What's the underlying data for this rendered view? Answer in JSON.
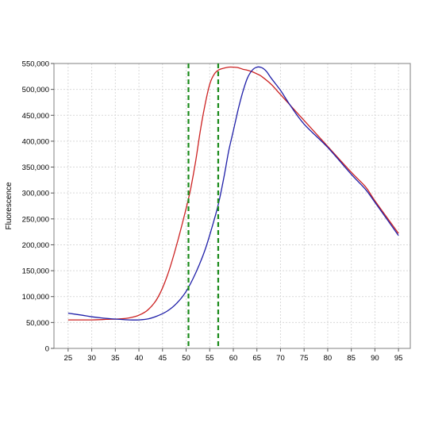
{
  "chart_data": {
    "type": "line",
    "title": "",
    "xlabel": "",
    "ylabel": "Fluorescence",
    "xlim": [
      22,
      97.5
    ],
    "ylim": [
      0,
      550000
    ],
    "x_ticks": [
      25,
      30,
      35,
      40,
      45,
      50,
      55,
      60,
      65,
      70,
      75,
      80,
      85,
      90,
      95
    ],
    "x_tick_labels": [
      "25",
      "30",
      "35",
      "40",
      "45",
      "50",
      "55",
      "60",
      "65",
      "70",
      "75",
      "80",
      "85",
      "90",
      "95"
    ],
    "y_ticks": [
      0,
      50000,
      100000,
      150000,
      200000,
      250000,
      300000,
      350000,
      400000,
      450000,
      500000,
      550000
    ],
    "y_tick_labels": [
      "0",
      "50,000",
      "100,000",
      "150,000",
      "200,000",
      "250,000",
      "300,000",
      "350,000",
      "400,000",
      "450,000",
      "500,000",
      "550,000"
    ],
    "grid": true,
    "legend": "none",
    "series": [
      {
        "color": "#cc2222",
        "points": [
          [
            25,
            55000
          ],
          [
            30,
            55000
          ],
          [
            33,
            56000
          ],
          [
            36,
            57000
          ],
          [
            38,
            59000
          ],
          [
            40,
            64000
          ],
          [
            42,
            75000
          ],
          [
            44,
            98000
          ],
          [
            46,
            140000
          ],
          [
            48,
            200000
          ],
          [
            50,
            270000
          ],
          [
            51,
            310000
          ],
          [
            52,
            360000
          ],
          [
            53,
            420000
          ],
          [
            54,
            470000
          ],
          [
            55,
            510000
          ],
          [
            56,
            530000
          ],
          [
            57,
            538000
          ],
          [
            58,
            541000
          ],
          [
            59,
            543000
          ],
          [
            60,
            543000
          ],
          [
            61,
            542000
          ],
          [
            62,
            539000
          ],
          [
            63,
            537000
          ],
          [
            64,
            534000
          ],
          [
            65,
            530000
          ],
          [
            66,
            525000
          ],
          [
            68,
            510000
          ],
          [
            70,
            490000
          ],
          [
            75,
            440000
          ],
          [
            80,
            390000
          ],
          [
            85,
            340000
          ],
          [
            88,
            312000
          ],
          [
            90,
            285000
          ],
          [
            95,
            222000
          ]
        ]
      },
      {
        "color": "#1f1fa8",
        "points": [
          [
            25,
            68000
          ],
          [
            28,
            64000
          ],
          [
            30,
            61000
          ],
          [
            33,
            58000
          ],
          [
            36,
            56000
          ],
          [
            38,
            55000
          ],
          [
            40,
            55000
          ],
          [
            42,
            57000
          ],
          [
            44,
            63000
          ],
          [
            46,
            72000
          ],
          [
            48,
            87000
          ],
          [
            50,
            110000
          ],
          [
            52,
            145000
          ],
          [
            54,
            190000
          ],
          [
            56,
            250000
          ],
          [
            57,
            285000
          ],
          [
            58,
            330000
          ],
          [
            59,
            380000
          ],
          [
            60,
            420000
          ],
          [
            61,
            460000
          ],
          [
            62,
            495000
          ],
          [
            63,
            522000
          ],
          [
            64,
            537000
          ],
          [
            65,
            543000
          ],
          [
            66,
            542000
          ],
          [
            67,
            535000
          ],
          [
            68,
            522000
          ],
          [
            70,
            498000
          ],
          [
            72,
            470000
          ],
          [
            75,
            433000
          ],
          [
            80,
            388000
          ],
          [
            85,
            336000
          ],
          [
            88,
            307000
          ],
          [
            90,
            282000
          ],
          [
            95,
            218000
          ]
        ]
      }
    ],
    "markers": [
      {
        "x": 50.5,
        "color": "#1a8a1a",
        "style": "dashed"
      },
      {
        "x": 56.8,
        "color": "#1a8a1a",
        "style": "dashed"
      }
    ]
  }
}
